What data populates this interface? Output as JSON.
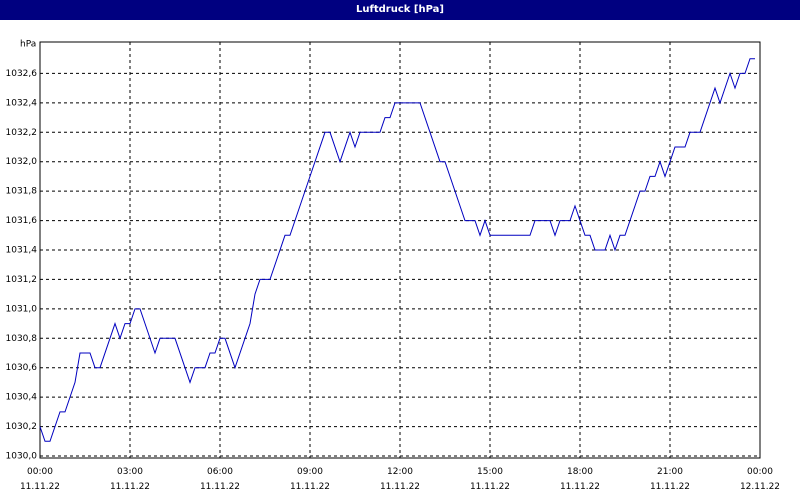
{
  "chart_data": {
    "type": "line",
    "title": "Luftdruck [hPa]",
    "y_label": "hPa",
    "xlim": [
      "00:00 11.11.22",
      "00:00 12.11.22"
    ],
    "xticks": [
      "00:00 11.11.22",
      "03:00 11.11.22",
      "06:00 11.11.22",
      "09:00 11.11.22",
      "12:00 11.11.22",
      "15:00 11.11.22",
      "18:00 11.11.22",
      "21:00 11.11.22",
      "00:00 12.11.22"
    ],
    "ylim": [
      1030.0,
      1032.8
    ],
    "yticks": [
      {
        "value": 1030.0,
        "label": "1030,0"
      },
      {
        "value": 1030.2,
        "label": "1030,2"
      },
      {
        "value": 1030.4,
        "label": "1030,4"
      },
      {
        "value": 1030.6,
        "label": "1030,6"
      },
      {
        "value": 1030.8,
        "label": "1030,8"
      },
      {
        "value": 1031.0,
        "label": "1031,0"
      },
      {
        "value": 1031.2,
        "label": "1031,2"
      },
      {
        "value": 1031.4,
        "label": "1031,4"
      },
      {
        "value": 1031.6,
        "label": "1031,6"
      },
      {
        "value": 1031.8,
        "label": "1031,8"
      },
      {
        "value": 1032.0,
        "label": "1032,0"
      },
      {
        "value": 1032.2,
        "label": "1032,2"
      },
      {
        "value": 1032.4,
        "label": "1032,4"
      },
      {
        "value": 1032.6,
        "label": "1032,6"
      }
    ],
    "grid": true,
    "x": [
      "00:00 11.11.22",
      "00:10 11.11.22",
      "00:20 11.11.22",
      "00:40 11.11.22",
      "00:50 11.11.22",
      "01:10 11.11.22",
      "01:20 11.11.22",
      "01:40 11.11.22",
      "01:50 11.11.22",
      "02:00 11.11.22",
      "02:30 11.11.22",
      "02:40 11.11.22",
      "02:50 11.11.22",
      "03:00 11.11.22",
      "03:10 11.11.22",
      "03:20 11.11.22",
      "03:50 11.11.22",
      "04:00 11.11.22",
      "04:30 11.11.22",
      "05:00 11.11.22",
      "05:10 11.11.22",
      "05:30 11.11.22",
      "05:40 11.11.22",
      "05:50 11.11.22",
      "06:00 11.11.22",
      "06:10 11.11.22",
      "06:30 11.11.22",
      "07:00 11.11.22",
      "07:10 11.11.22",
      "07:20 11.11.22",
      "07:40 11.11.22",
      "08:10 11.11.22",
      "08:20 11.11.22",
      "09:00 11.11.22",
      "09:30 11.11.22",
      "09:40 11.11.22",
      "10:00 11.11.22",
      "10:20 11.11.22",
      "10:30 11.11.22",
      "10:40 11.11.22",
      "11:20 11.11.22",
      "11:30 11.11.22",
      "11:40 11.11.22",
      "11:50 11.11.22",
      "12:40 11.11.22",
      "13:20 11.11.22",
      "13:30 11.11.22",
      "14:10 11.11.22",
      "14:30 11.11.22",
      "14:40 11.11.22",
      "14:50 11.11.22",
      "15:00 11.11.22",
      "16:20 11.11.22",
      "16:30 11.11.22",
      "17:00 11.11.22",
      "17:10 11.11.22",
      "17:20 11.11.22",
      "17:40 11.11.22",
      "17:50 11.11.22",
      "18:10 11.11.22",
      "18:20 11.11.22",
      "18:30 11.11.22",
      "18:50 11.11.22",
      "19:00 11.11.22",
      "19:10 11.11.22",
      "19:20 11.11.22",
      "19:30 11.11.22",
      "20:00 11.11.22",
      "20:10 11.11.22",
      "20:20 11.11.22",
      "20:30 11.11.22",
      "20:40 11.11.22",
      "20:50 11.11.22",
      "21:10 11.11.22",
      "21:30 11.11.22",
      "21:40 11.11.22",
      "22:00 11.11.22",
      "22:30 11.11.22",
      "22:40 11.11.22",
      "23:00 11.11.22",
      "23:10 11.11.22",
      "23:20 11.11.22",
      "23:30 11.11.22",
      "23:40 11.11.22",
      "23:50 11.11.22"
    ],
    "series": [
      {
        "name": "Luftdruck",
        "color": "#0000c0",
        "values": [
          1030.2,
          1030.1,
          1030.1,
          1030.3,
          1030.3,
          1030.5,
          1030.7,
          1030.7,
          1030.6,
          1030.6,
          1030.9,
          1030.8,
          1030.9,
          1030.9,
          1031.0,
          1031.0,
          1030.7,
          1030.8,
          1030.8,
          1030.5,
          1030.6,
          1030.6,
          1030.7,
          1030.7,
          1030.8,
          1030.8,
          1030.6,
          1030.9,
          1031.1,
          1031.2,
          1031.2,
          1031.5,
          1031.5,
          1031.9,
          1032.2,
          1032.2,
          1032.0,
          1032.2,
          1032.1,
          1032.2,
          1032.2,
          1032.3,
          1032.3,
          1032.4,
          1032.4,
          1032.0,
          1032.0,
          1031.6,
          1031.6,
          1031.5,
          1031.6,
          1031.5,
          1031.5,
          1031.6,
          1031.6,
          1031.5,
          1031.6,
          1031.6,
          1031.7,
          1031.5,
          1031.5,
          1031.4,
          1031.4,
          1031.5,
          1031.4,
          1031.5,
          1031.5,
          1031.8,
          1031.8,
          1031.9,
          1031.9,
          1032.0,
          1031.9,
          1032.1,
          1032.1,
          1032.2,
          1032.2,
          1032.5,
          1032.4,
          1032.6,
          1032.5,
          1032.6,
          1032.6,
          1032.7,
          1032.7
        ]
      }
    ]
  }
}
